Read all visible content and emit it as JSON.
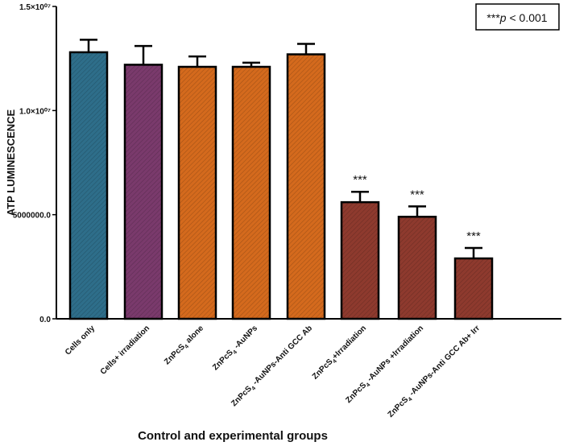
{
  "chart_data": {
    "type": "bar",
    "title": "",
    "xlabel": "Control and experimental groups",
    "ylabel": "ATP LUMINESCENCE",
    "ylim": [
      0,
      15000000
    ],
    "yticks": [
      {
        "value": 0,
        "label": "0.0"
      },
      {
        "value": 5000000,
        "label": "5000000.0"
      },
      {
        "value": 10000000,
        "label": "1.0×10⁰⁷"
      },
      {
        "value": 15000000,
        "label": "1.5×10⁰⁷"
      }
    ],
    "categories": [
      {
        "text": "Cells only"
      },
      {
        "text": "Cells+ irradiation"
      },
      {
        "text": "ZnPcS",
        "sub": "4",
        "tail": " alone"
      },
      {
        "text": "ZnPcS",
        "sub": "4",
        "tail": " -AuNPs"
      },
      {
        "text": "ZnPcS",
        "sub": "4",
        "tail": " -AuNPs-Anti GCC Ab"
      },
      {
        "text": "ZnPcS",
        "sub": "4",
        "tail": "+Irradiation"
      },
      {
        "text": "ZnPcS",
        "sub": "4",
        "tail": " -AuNPs +Irradiation"
      },
      {
        "text": "ZnPcS",
        "sub": "4",
        "tail": " -AuNPs-Anti GCC Ab+ Irr"
      }
    ],
    "values": [
      12800000,
      12200000,
      12100000,
      12100000,
      12700000,
      5600000,
      4900000,
      2900000
    ],
    "errors": [
      600000,
      900000,
      500000,
      200000,
      500000,
      500000,
      500000,
      500000
    ],
    "significance": [
      "",
      "",
      "",
      "",
      "",
      "***",
      "***",
      "***"
    ],
    "colors": [
      "#2e6e8a",
      "#7a3a6c",
      "#d46a1d",
      "#d46a1d",
      "#d46a1d",
      "#8e3a2e",
      "#8e3a2e",
      "#8e3a2e"
    ],
    "legend": {
      "stars": "***",
      "p": "p",
      "text": " < 0.001"
    }
  }
}
